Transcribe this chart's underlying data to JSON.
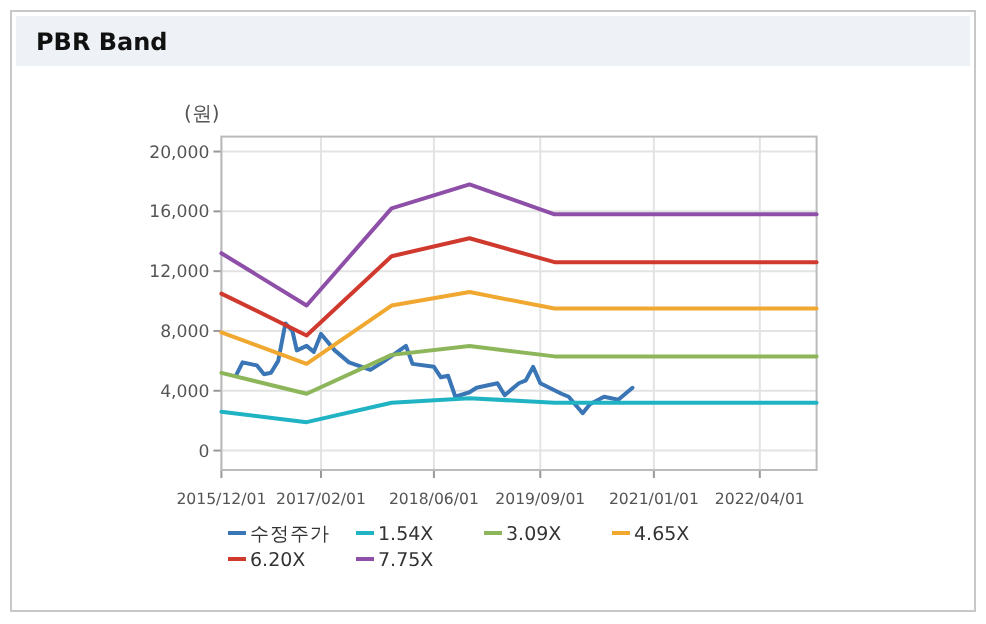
{
  "chart_data": {
    "type": "line",
    "title": "PBR Band",
    "ylabel": "(원)",
    "xlim": [
      "2015-12-01",
      "2022-12-01"
    ],
    "xticks": [
      {
        "value": "2015-12-01",
        "label": "2015/12/01"
      },
      {
        "value": "2017-02-01",
        "label": "2017/02/01"
      },
      {
        "value": "2018-06-01",
        "label": "2018/06/01"
      },
      {
        "value": "2019-09-01",
        "label": "2019/09/01"
      },
      {
        "value": "2021-01-01",
        "label": "2021/01/01"
      },
      {
        "value": "2022-04-01",
        "label": "2022/04/01"
      }
    ],
    "ylim": [
      -1300,
      21000
    ],
    "yticks": [
      {
        "value": 0,
        "label": "0"
      },
      {
        "value": 4000,
        "label": "4,000"
      },
      {
        "value": 8000,
        "label": "8,000"
      },
      {
        "value": 12000,
        "label": "12,000"
      },
      {
        "value": 16000,
        "label": "16,000"
      },
      {
        "value": 20000,
        "label": "20,000"
      }
    ],
    "grid": true,
    "legend": "bottom",
    "marker": "none",
    "line_style": "solid",
    "series": [
      {
        "name": "수정주가",
        "color": "#3a75b5",
        "x": [
          "2016-02",
          "2016-03",
          "2016-05",
          "2016-06",
          "2016-07",
          "2016-08",
          "2016-09",
          "2016-10-01",
          "2016-10-20",
          "2016-12",
          "2017-01",
          "2017-02",
          "2017-04",
          "2017-06",
          "2017-09",
          "2017-11",
          "2018-02",
          "2018-03",
          "2018-06",
          "2018-07",
          "2018-08",
          "2018-09",
          "2018-11",
          "2018-12",
          "2019-03",
          "2019-04",
          "2019-06",
          "2019-07",
          "2019-08",
          "2019-09",
          "2019-12",
          "2020-01",
          "2020-03",
          "2020-04",
          "2020-06",
          "2020-08",
          "2020-10"
        ],
        "values": [
          5000,
          5900,
          5700,
          5100,
          5200,
          6000,
          8500,
          8000,
          6700,
          7000,
          6600,
          7800,
          6700,
          5900,
          5400,
          6000,
          7000,
          5800,
          5600,
          4900,
          5000,
          3600,
          3900,
          4200,
          4500,
          3700,
          4500,
          4700,
          5600,
          4500,
          3800,
          3600,
          2500,
          3100,
          3600,
          3400,
          4200
        ]
      },
      {
        "name": "1.54X",
        "color": "#1fb3c4",
        "x": [
          "2015-12",
          "2016-12",
          "2017-12",
          "2018-11",
          "2019-11",
          "2022-12"
        ],
        "values": [
          2600,
          1900,
          3200,
          3500,
          3200,
          3200
        ]
      },
      {
        "name": "3.09X",
        "color": "#8db55a",
        "x": [
          "2015-12",
          "2016-12",
          "2017-12",
          "2018-11",
          "2019-11",
          "2022-12"
        ],
        "values": [
          5200,
          3800,
          6400,
          7000,
          6300,
          6300
        ]
      },
      {
        "name": "4.65X",
        "color": "#f0a830",
        "x": [
          "2015-12",
          "2016-12",
          "2017-12",
          "2018-11",
          "2019-11",
          "2022-12"
        ],
        "values": [
          7900,
          5800,
          9700,
          10600,
          9500,
          9500
        ]
      },
      {
        "name": "6.20X",
        "color": "#d03a2e",
        "x": [
          "2015-12",
          "2016-12",
          "2017-12",
          "2018-11",
          "2019-11",
          "2022-12"
        ],
        "values": [
          10500,
          7700,
          13000,
          14200,
          12600,
          12600
        ]
      },
      {
        "name": "7.75X",
        "color": "#8e4fa8",
        "x": [
          "2015-12",
          "2016-12",
          "2017-12",
          "2018-11",
          "2019-11",
          "2022-12"
        ],
        "values": [
          13200,
          9700,
          16200,
          17800,
          15800,
          15800
        ]
      }
    ]
  }
}
